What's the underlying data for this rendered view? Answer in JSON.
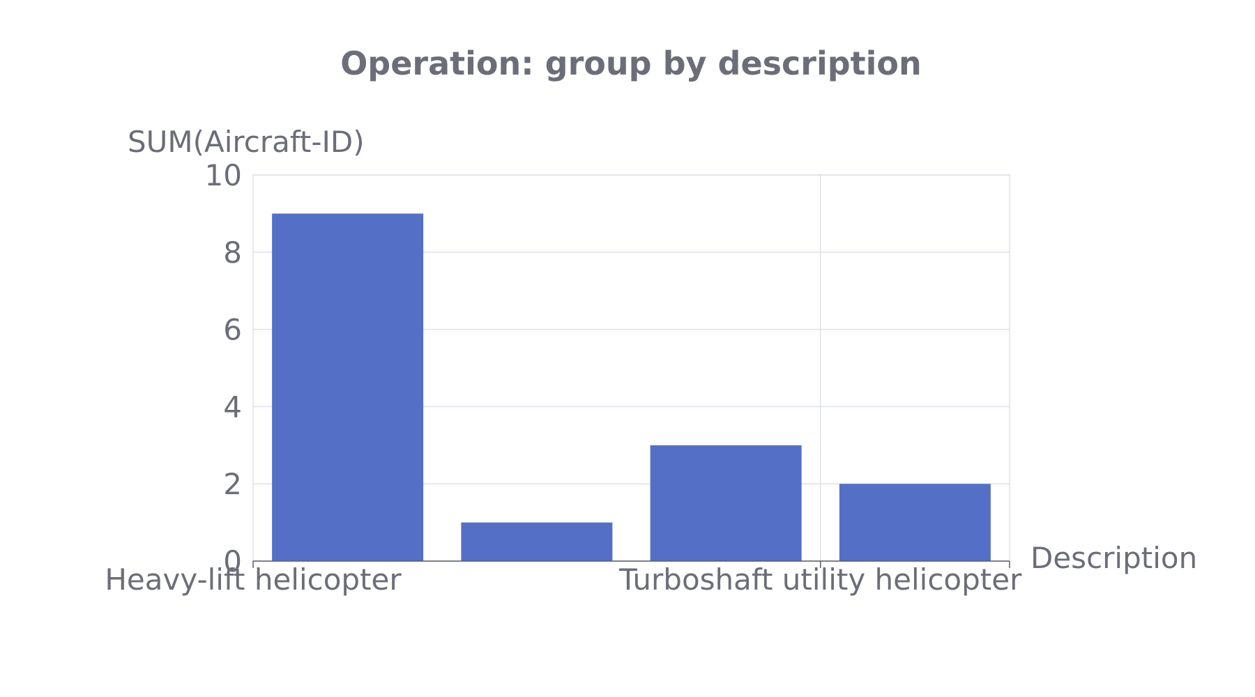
{
  "chart_data": {
    "type": "bar",
    "title": "Operation: group by description",
    "xlabel": "Description",
    "ylabel": "SUM(Aircraft-ID)",
    "categories": [
      "Heavy-lift helicopter",
      "",
      "",
      "Turboshaft utility helicopter"
    ],
    "values": [
      9,
      1,
      3,
      2
    ],
    "ylim": [
      0,
      10
    ],
    "yticks": [
      0,
      2,
      4,
      6,
      8,
      10
    ],
    "x_tick_labels": [
      "Heavy-lift helicopter",
      "Turboshaft utility helicopter"
    ],
    "grid": true,
    "legend": "none",
    "bar_color": "#5470c6"
  }
}
